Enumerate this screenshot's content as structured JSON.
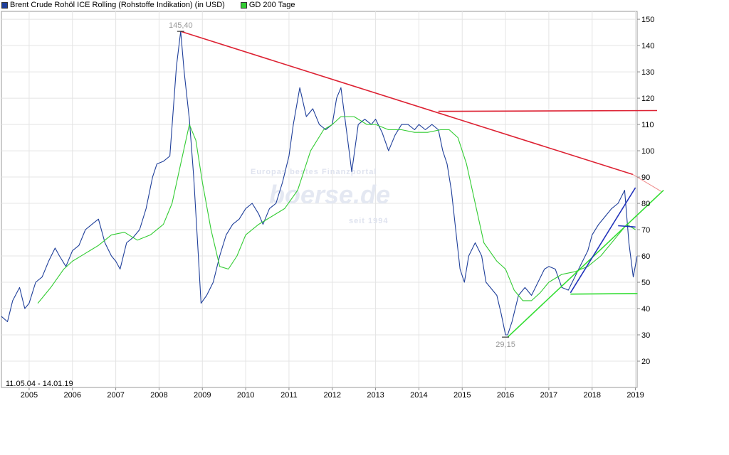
{
  "legend": [
    {
      "label": "Brent Crude Rohöl ICE Rolling (Rohstoffe Indikation) (in USD)",
      "color": "#1f3f9a"
    },
    {
      "label": "GD 200 Tage",
      "color": "#33cc33"
    }
  ],
  "watermark": {
    "line1": "Europas bestes Finanzportal",
    "line2": "boerse.de",
    "line3": "seit 1994"
  },
  "date_range_label": "11.05.04 - 14.01.19",
  "chart_data": {
    "type": "line",
    "xlim": [
      2004.36,
      2019.04
    ],
    "ylim": [
      10,
      153
    ],
    "y_ticks": [
      20,
      30,
      40,
      50,
      60,
      70,
      80,
      90,
      100,
      110,
      120,
      130,
      140,
      150
    ],
    "x_ticks": [
      "2005",
      "2006",
      "2007",
      "2008",
      "2009",
      "2010",
      "2011",
      "2012",
      "2013",
      "2014",
      "2015",
      "2016",
      "2017",
      "2018",
      "2019"
    ],
    "grid": true,
    "legend_position": "top-left",
    "series": [
      {
        "name": "Brent Crude Rohöl ICE Rolling (Rohstoffe Indikation) (in USD)",
        "color": "#1f3f9a",
        "x": [
          2004.36,
          2004.5,
          2004.62,
          2004.78,
          2004.9,
          2005.0,
          2005.15,
          2005.3,
          2005.45,
          2005.6,
          2005.7,
          2005.85,
          2006.0,
          2006.15,
          2006.3,
          2006.45,
          2006.6,
          2006.75,
          2006.9,
          2007.0,
          2007.1,
          2007.25,
          2007.4,
          2007.55,
          2007.7,
          2007.85,
          2007.95,
          2008.1,
          2008.25,
          2008.4,
          2008.5,
          2008.58,
          2008.7,
          2008.8,
          2008.9,
          2008.97,
          2009.1,
          2009.25,
          2009.4,
          2009.55,
          2009.7,
          2009.85,
          2010.0,
          2010.15,
          2010.3,
          2010.4,
          2010.55,
          2010.7,
          2010.85,
          2011.0,
          2011.1,
          2011.25,
          2011.4,
          2011.55,
          2011.7,
          2011.85,
          2012.0,
          2012.1,
          2012.2,
          2012.35,
          2012.45,
          2012.6,
          2012.75,
          2012.9,
          2013.0,
          2013.15,
          2013.3,
          2013.45,
          2013.6,
          2013.75,
          2013.9,
          2014.0,
          2014.15,
          2014.3,
          2014.45,
          2014.55,
          2014.65,
          2014.75,
          2014.85,
          2014.95,
          2015.05,
          2015.15,
          2015.3,
          2015.45,
          2015.55,
          2015.65,
          2015.8,
          2015.9,
          2016.0,
          2016.05,
          2016.15,
          2016.3,
          2016.45,
          2016.6,
          2016.75,
          2016.9,
          2017.0,
          2017.15,
          2017.3,
          2017.45,
          2017.6,
          2017.75,
          2017.9,
          2018.0,
          2018.15,
          2018.3,
          2018.45,
          2018.6,
          2018.75,
          2018.85,
          2018.95,
          2019.04
        ],
        "values": [
          37,
          35,
          43,
          48,
          40,
          42,
          50,
          52,
          58,
          63,
          60,
          56,
          62,
          64,
          70,
          72,
          74,
          65,
          60,
          58,
          55,
          65,
          67,
          70,
          78,
          90,
          95,
          96,
          98,
          132,
          145.4,
          130,
          112,
          90,
          62,
          42,
          45,
          50,
          60,
          68,
          72,
          74,
          78,
          80,
          76,
          72,
          78,
          80,
          88,
          98,
          110,
          124,
          113,
          116,
          110,
          108,
          110,
          120,
          124,
          105,
          92,
          110,
          112,
          110,
          112,
          107,
          100,
          106,
          110,
          110,
          108,
          110,
          108,
          110,
          108,
          100,
          95,
          85,
          70,
          55,
          50,
          60,
          65,
          60,
          50,
          48,
          45,
          38,
          30,
          30,
          35,
          45,
          48,
          45,
          50,
          55,
          56,
          55,
          48,
          47,
          52,
          57,
          62,
          68,
          72,
          75,
          78,
          80,
          85,
          65,
          52,
          60
        ]
      },
      {
        "name": "GD 200 Tage",
        "color": "#33cc33",
        "x": [
          2005.2,
          2005.5,
          2005.8,
          2006.0,
          2006.3,
          2006.6,
          2006.9,
          2007.2,
          2007.5,
          2007.8,
          2008.1,
          2008.3,
          2008.5,
          2008.7,
          2008.85,
          2009.0,
          2009.2,
          2009.4,
          2009.6,
          2009.8,
          2010.0,
          2010.3,
          2010.6,
          2010.9,
          2011.2,
          2011.5,
          2011.8,
          2012.0,
          2012.2,
          2012.5,
          2012.8,
          2013.0,
          2013.3,
          2013.6,
          2013.9,
          2014.2,
          2014.5,
          2014.7,
          2014.9,
          2015.1,
          2015.3,
          2015.5,
          2015.8,
          2016.0,
          2016.2,
          2016.4,
          2016.6,
          2016.8,
          2017.0,
          2017.3,
          2017.6,
          2017.9,
          2018.2,
          2018.5,
          2018.8,
          2019.0
        ],
        "values": [
          42,
          48,
          55,
          58,
          61,
          64,
          68,
          69,
          66,
          68,
          72,
          80,
          95,
          110,
          104,
          88,
          70,
          56,
          55,
          60,
          68,
          72,
          75,
          78,
          85,
          100,
          108,
          110,
          113,
          113,
          110,
          110,
          108,
          108,
          107,
          107,
          108,
          108,
          105,
          95,
          80,
          65,
          58,
          55,
          47,
          43,
          43,
          46,
          50,
          53,
          54,
          56,
          60,
          66,
          72,
          70
        ]
      },
      {
        "name": "",
        "color": "#dd2233",
        "width": 1.6,
        "x": [
          2008.5,
          2018.94
        ],
        "values": [
          145.4,
          91
        ]
      },
      {
        "name": "",
        "color": "#ee8888",
        "width": 1.0,
        "x": [
          2018.94,
          2019.6
        ],
        "values": [
          91,
          84.5
        ]
      },
      {
        "name": "",
        "color": "#dd2233",
        "width": 1.6,
        "x": [
          2014.45,
          2019.5
        ],
        "values": [
          115,
          115.3
        ]
      },
      {
        "name": "",
        "color": "#33dd33",
        "width": 1.6,
        "x": [
          2016.05,
          2019.65
        ],
        "values": [
          29.15,
          85
        ]
      },
      {
        "name": "",
        "color": "#33dd33",
        "width": 1.6,
        "x": [
          2017.5,
          2019.05
        ],
        "values": [
          45.5,
          45.7
        ]
      },
      {
        "name": "",
        "color": "#2233bb",
        "width": 1.6,
        "x": [
          2017.5,
          2019.0
        ],
        "values": [
          46,
          86
        ]
      },
      {
        "name": "",
        "color": "#2233bb",
        "width": 1.6,
        "x": [
          2018.6,
          2019.0
        ],
        "values": [
          71.5,
          71
        ]
      }
    ],
    "annotations": [
      {
        "text": "145,40",
        "x": 2008.5,
        "y": 145.4
      },
      {
        "text": "29,15",
        "x": 2016.0,
        "y": 29.15
      }
    ]
  }
}
